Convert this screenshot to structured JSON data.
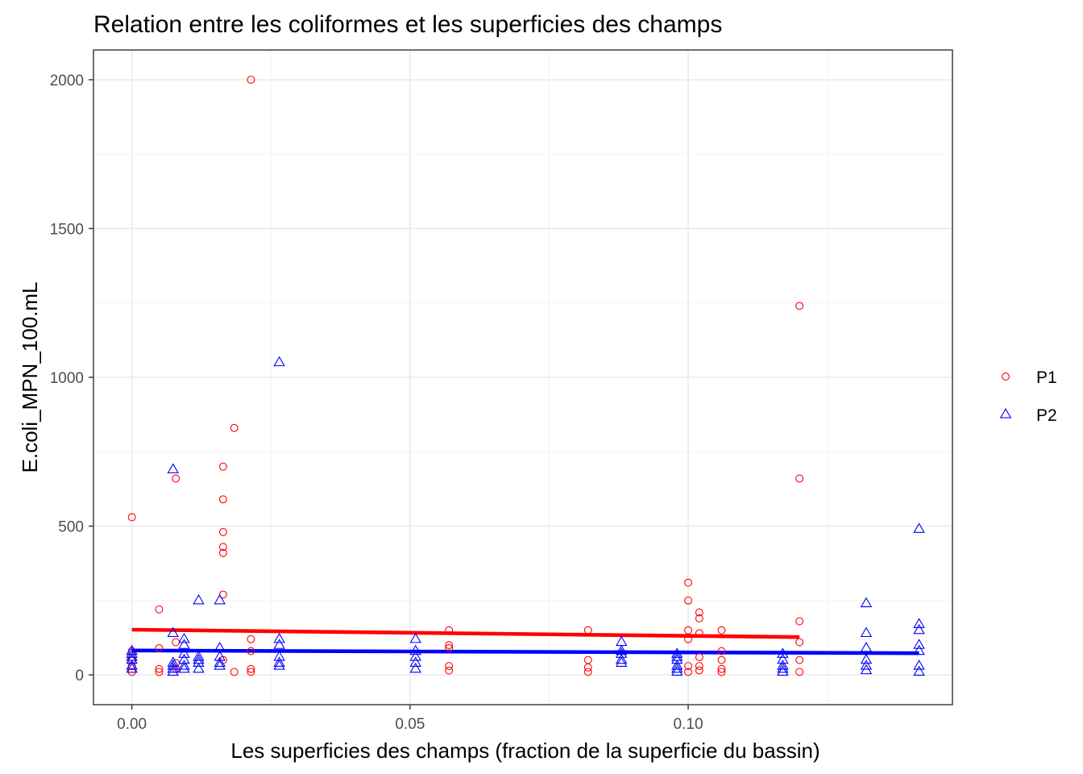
{
  "chart_data": {
    "type": "scatter",
    "title": "Relation entre les coliformes et les superficies des champs",
    "xlabel": "Les superficies des champs (fraction de la superficie du bassin)",
    "ylabel": "E.coli_MPN_100.mL",
    "xlim": [
      -0.0069,
      0.1475
    ],
    "ylim": [
      -100,
      2100
    ],
    "x_ticks": [
      0.0,
      0.05,
      0.1
    ],
    "x_tick_labels": [
      "0.00",
      "0.05",
      "0.10"
    ],
    "y_ticks": [
      0,
      500,
      1000,
      1500,
      2000
    ],
    "y_tick_labels": [
      "0",
      "500",
      "1000",
      "1500",
      "2000"
    ],
    "grid": true,
    "legend_position": "right",
    "series": [
      {
        "name": "P1",
        "marker": "circle",
        "color": "#ff0000",
        "points": [
          [
            0.0,
            530
          ],
          [
            0.0,
            80
          ],
          [
            0.0,
            50
          ],
          [
            0.0,
            30
          ],
          [
            0.0,
            10
          ],
          [
            0.0049,
            220
          ],
          [
            0.0049,
            90
          ],
          [
            0.0049,
            20
          ],
          [
            0.0049,
            10
          ],
          [
            0.0079,
            660
          ],
          [
            0.0079,
            110
          ],
          [
            0.0079,
            40
          ],
          [
            0.0079,
            20
          ],
          [
            0.0164,
            700
          ],
          [
            0.0164,
            590
          ],
          [
            0.0164,
            480
          ],
          [
            0.0164,
            430
          ],
          [
            0.0164,
            410
          ],
          [
            0.0164,
            270
          ],
          [
            0.0164,
            50
          ],
          [
            0.0184,
            830
          ],
          [
            0.0184,
            10
          ],
          [
            0.0214,
            2000
          ],
          [
            0.0214,
            120
          ],
          [
            0.0214,
            80
          ],
          [
            0.0214,
            20
          ],
          [
            0.0214,
            10
          ],
          [
            0.057,
            150
          ],
          [
            0.057,
            100
          ],
          [
            0.057,
            90
          ],
          [
            0.057,
            30
          ],
          [
            0.057,
            15
          ],
          [
            0.082,
            150
          ],
          [
            0.082,
            50
          ],
          [
            0.082,
            25
          ],
          [
            0.082,
            10
          ],
          [
            0.1,
            310
          ],
          [
            0.1,
            250
          ],
          [
            0.1,
            150
          ],
          [
            0.1,
            120
          ],
          [
            0.1,
            30
          ],
          [
            0.1,
            10
          ],
          [
            0.102,
            210
          ],
          [
            0.102,
            190
          ],
          [
            0.102,
            140
          ],
          [
            0.102,
            60
          ],
          [
            0.102,
            30
          ],
          [
            0.102,
            15
          ],
          [
            0.106,
            150
          ],
          [
            0.106,
            80
          ],
          [
            0.106,
            50
          ],
          [
            0.106,
            20
          ],
          [
            0.106,
            10
          ],
          [
            0.12,
            1240
          ],
          [
            0.12,
            660
          ],
          [
            0.12,
            180
          ],
          [
            0.12,
            110
          ],
          [
            0.12,
            50
          ],
          [
            0.12,
            10
          ]
        ],
        "trend": {
          "x": [
            0.0,
            0.12
          ],
          "y": [
            152,
            127
          ],
          "color": "#ff0000"
        }
      },
      {
        "name": "P2",
        "marker": "triangle",
        "color": "#0000ff",
        "points": [
          [
            0.0,
            80
          ],
          [
            0.0,
            70
          ],
          [
            0.0,
            60
          ],
          [
            0.0,
            50
          ],
          [
            0.0,
            30
          ],
          [
            0.0,
            20
          ],
          [
            0.0074,
            690
          ],
          [
            0.0074,
            140
          ],
          [
            0.0074,
            40
          ],
          [
            0.0074,
            30
          ],
          [
            0.0074,
            20
          ],
          [
            0.0074,
            10
          ],
          [
            0.0094,
            120
          ],
          [
            0.0094,
            100
          ],
          [
            0.0094,
            70
          ],
          [
            0.0094,
            50
          ],
          [
            0.0094,
            30
          ],
          [
            0.0094,
            20
          ],
          [
            0.012,
            250
          ],
          [
            0.012,
            60
          ],
          [
            0.012,
            50
          ],
          [
            0.012,
            40
          ],
          [
            0.012,
            20
          ],
          [
            0.0158,
            250
          ],
          [
            0.0158,
            90
          ],
          [
            0.0158,
            60
          ],
          [
            0.0158,
            40
          ],
          [
            0.0158,
            30
          ],
          [
            0.0265,
            1050
          ],
          [
            0.0265,
            120
          ],
          [
            0.0265,
            100
          ],
          [
            0.0265,
            60
          ],
          [
            0.0265,
            40
          ],
          [
            0.0265,
            30
          ],
          [
            0.051,
            120
          ],
          [
            0.051,
            80
          ],
          [
            0.051,
            60
          ],
          [
            0.051,
            40
          ],
          [
            0.051,
            20
          ],
          [
            0.088,
            110
          ],
          [
            0.088,
            80
          ],
          [
            0.088,
            70
          ],
          [
            0.088,
            50
          ],
          [
            0.088,
            40
          ],
          [
            0.098,
            70
          ],
          [
            0.098,
            60
          ],
          [
            0.098,
            50
          ],
          [
            0.098,
            30
          ],
          [
            0.098,
            20
          ],
          [
            0.098,
            10
          ],
          [
            0.117,
            70
          ],
          [
            0.117,
            50
          ],
          [
            0.117,
            30
          ],
          [
            0.117,
            20
          ],
          [
            0.117,
            10
          ],
          [
            0.132,
            240
          ],
          [
            0.132,
            140
          ],
          [
            0.132,
            90
          ],
          [
            0.132,
            50
          ],
          [
            0.132,
            30
          ],
          [
            0.132,
            15
          ],
          [
            0.1415,
            490
          ],
          [
            0.1415,
            170
          ],
          [
            0.1415,
            150
          ],
          [
            0.1415,
            100
          ],
          [
            0.1415,
            80
          ],
          [
            0.1415,
            30
          ],
          [
            0.1415,
            10
          ]
        ],
        "trend": {
          "x": [
            0.0,
            0.1415
          ],
          "y": [
            82,
            73
          ],
          "color": "#0000ff"
        }
      }
    ]
  }
}
